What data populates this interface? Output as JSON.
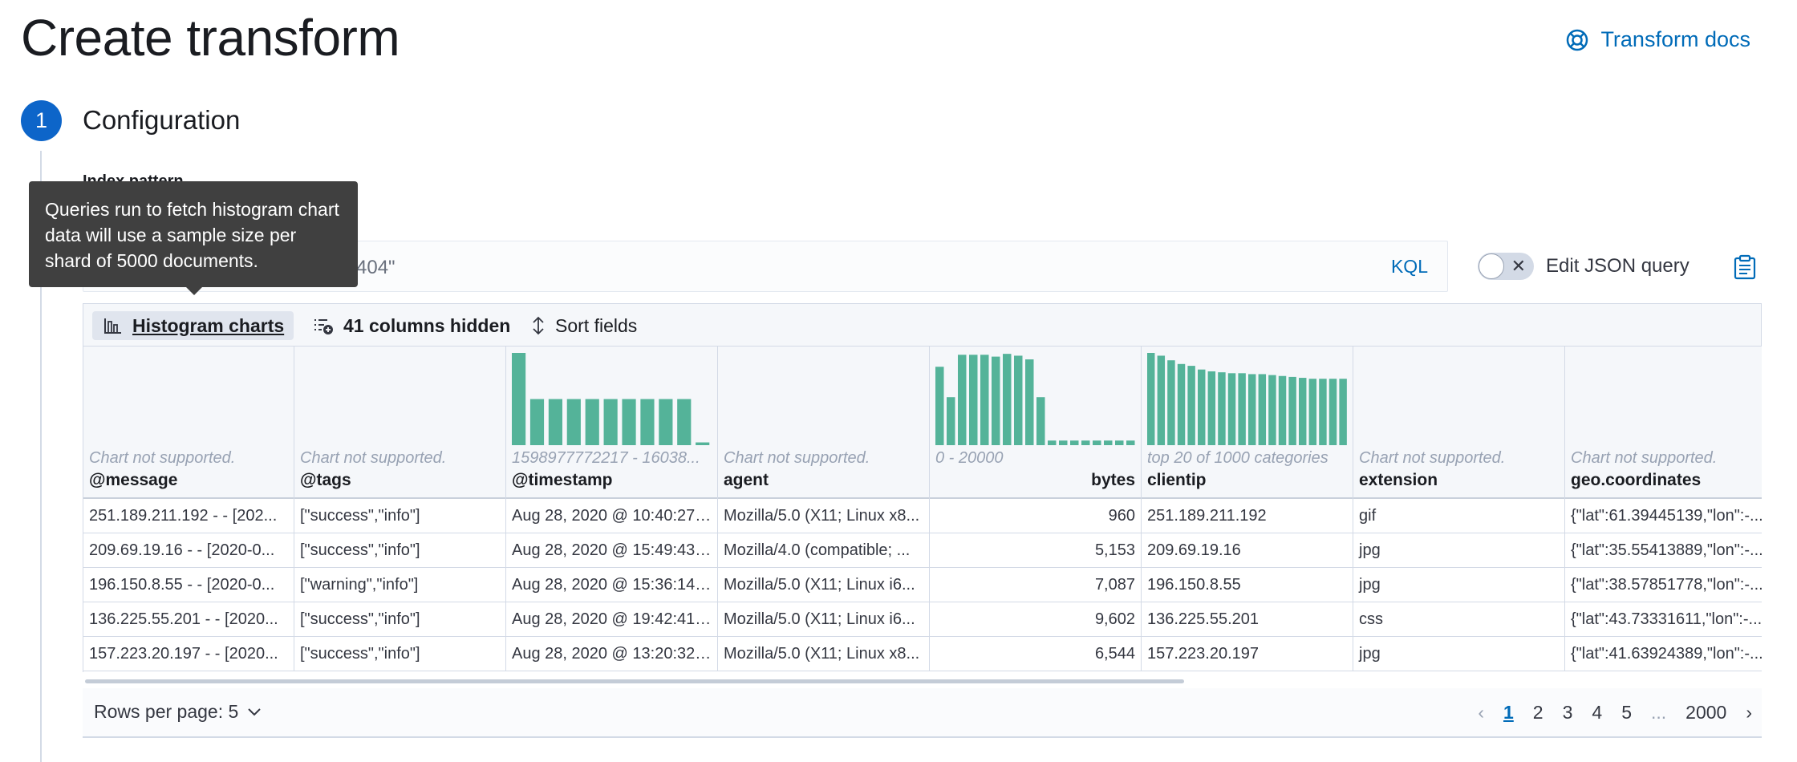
{
  "page": {
    "title": "Create transform",
    "docs_link": "Transform docs"
  },
  "step": {
    "number": "1",
    "title": "Configuration",
    "index_label": "Index pattern"
  },
  "query": {
    "text": "404\"",
    "language": "KQL",
    "json_toggle_label": "Edit JSON query"
  },
  "tooltip": {
    "text": "Queries run to fetch histogram chart data will use a sample size per shard of 5000 documents."
  },
  "toolbar": {
    "histogram": "Histogram charts",
    "columns_hidden": "41 columns hidden",
    "sort": "Sort fields"
  },
  "columns": [
    {
      "name": "@message",
      "note": "Chart not supported."
    },
    {
      "name": "@tags",
      "note": "Chart not supported."
    },
    {
      "name": "@timestamp",
      "note": "1598977772217 - 16038..."
    },
    {
      "name": "agent",
      "note": "Chart not supported."
    },
    {
      "name": "bytes",
      "note": "0 - 20000"
    },
    {
      "name": "clientip",
      "note": "top 20 of 1000 categories"
    },
    {
      "name": "extension",
      "note": "Chart not supported."
    },
    {
      "name": "geo.coordinates",
      "note": "Chart not supported."
    }
  ],
  "histograms": {
    "timestamp": [
      1.0,
      0.5,
      0.5,
      0.5,
      0.5,
      0.5,
      0.5,
      0.5,
      0.5,
      0.5,
      0.03
    ],
    "bytes": [
      0.85,
      0.52,
      0.98,
      0.98,
      0.98,
      0.96,
      0.99,
      0.97,
      0.93,
      0.52,
      0.05,
      0.05,
      0.05,
      0.05,
      0.05,
      0.05,
      0.05,
      0.05
    ],
    "clientip": [
      1.0,
      0.97,
      0.92,
      0.88,
      0.86,
      0.82,
      0.8,
      0.79,
      0.78,
      0.78,
      0.77,
      0.77,
      0.76,
      0.75,
      0.74,
      0.73,
      0.72,
      0.72,
      0.72,
      0.72
    ],
    "color": "#54b399"
  },
  "rows": [
    [
      "251.189.211.192 - - [202...",
      "[\"success\",\"info\"]",
      "Aug 28, 2020 @ 10:40:27....",
      "Mozilla/5.0 (X11; Linux x8...",
      "960",
      "251.189.211.192",
      "gif",
      "{\"lat\":61.39445139,\"lon\":-..."
    ],
    [
      "209.69.19.16 - - [2020-0...",
      "[\"success\",\"info\"]",
      "Aug 28, 2020 @ 15:49:43....",
      "Mozilla/4.0 (compatible; ...",
      "5,153",
      "209.69.19.16",
      "jpg",
      "{\"lat\":35.55413889,\"lon\":-..."
    ],
    [
      "196.150.8.55 - - [2020-0...",
      "[\"warning\",\"info\"]",
      "Aug 28, 2020 @ 15:36:14....",
      "Mozilla/5.0 (X11; Linux i6...",
      "7,087",
      "196.150.8.55",
      "jpg",
      "{\"lat\":38.57851778,\"lon\":-..."
    ],
    [
      "136.225.55.201 - - [2020...",
      "[\"success\",\"info\"]",
      "Aug 28, 2020 @ 19:42:41....",
      "Mozilla/5.0 (X11; Linux i6...",
      "9,602",
      "136.225.55.201",
      "css",
      "{\"lat\":43.73331611,\"lon\":-..."
    ],
    [
      "157.223.20.197 - - [2020...",
      "[\"success\",\"info\"]",
      "Aug 28, 2020 @ 13:20:32....",
      "Mozilla/5.0 (X11; Linux x8...",
      "6,544",
      "157.223.20.197",
      "jpg",
      "{\"lat\":41.63924389,\"lon\":-..."
    ]
  ],
  "footer": {
    "rows_per_page": "Rows per page: 5",
    "pages": [
      "1",
      "2",
      "3",
      "4",
      "5",
      "...",
      "2000"
    ],
    "active_page": "1"
  }
}
